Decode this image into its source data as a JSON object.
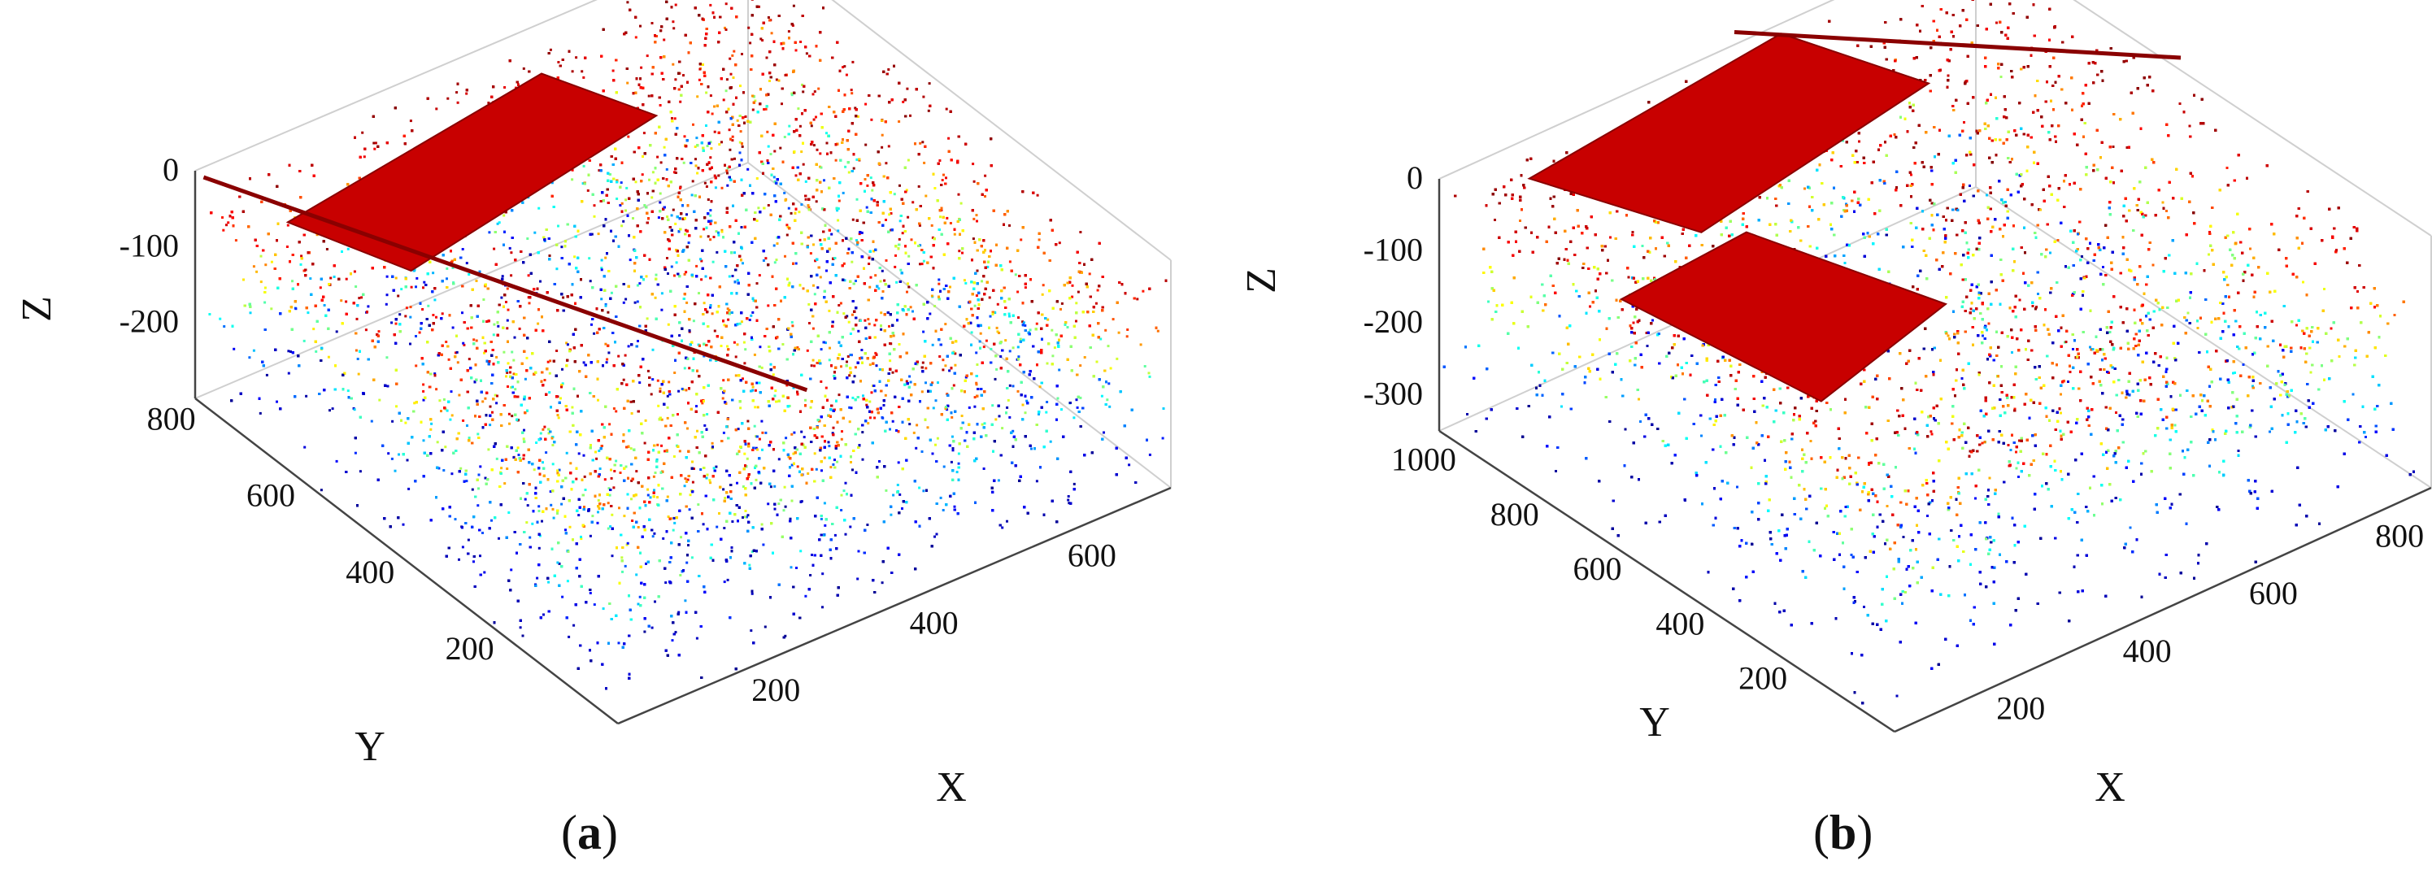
{
  "chart_data": [
    {
      "type": "scatter",
      "subtype": "3d-point-cloud",
      "caption_letter": "a",
      "xlabel": "X",
      "ylabel": "Y",
      "zlabel": "Z",
      "x_ticks": [
        "200",
        "400",
        "600"
      ],
      "y_ticks": [
        "200",
        "400",
        "600",
        "800"
      ],
      "z_ticks": [
        "0",
        "-100",
        "-200"
      ],
      "xlim": [
        0,
        700
      ],
      "ylim": [
        0,
        850
      ],
      "zlim": [
        -300,
        0
      ],
      "colormap": "jet",
      "colormap_stops": [
        "#00008f",
        "#0000ff",
        "#00ffff",
        "#ffff00",
        "#ff0000",
        "#7f0000"
      ]
    },
    {
      "type": "scatter",
      "subtype": "3d-point-cloud",
      "caption_letter": "b",
      "xlabel": "X",
      "ylabel": "Y",
      "zlabel": "Z",
      "x_ticks": [
        "200",
        "400",
        "600",
        "800"
      ],
      "y_ticks": [
        "200",
        "400",
        "600",
        "800",
        "1000"
      ],
      "z_ticks": [
        "0",
        "-100",
        "-200",
        "-300"
      ],
      "xlim": [
        0,
        850
      ],
      "ylim": [
        0,
        1100
      ],
      "zlim": [
        -350,
        0
      ],
      "colormap": "jet",
      "colormap_stops": [
        "#00008f",
        "#0000ff",
        "#00ffff",
        "#ffff00",
        "#ff0000",
        "#7f0000"
      ]
    }
  ]
}
